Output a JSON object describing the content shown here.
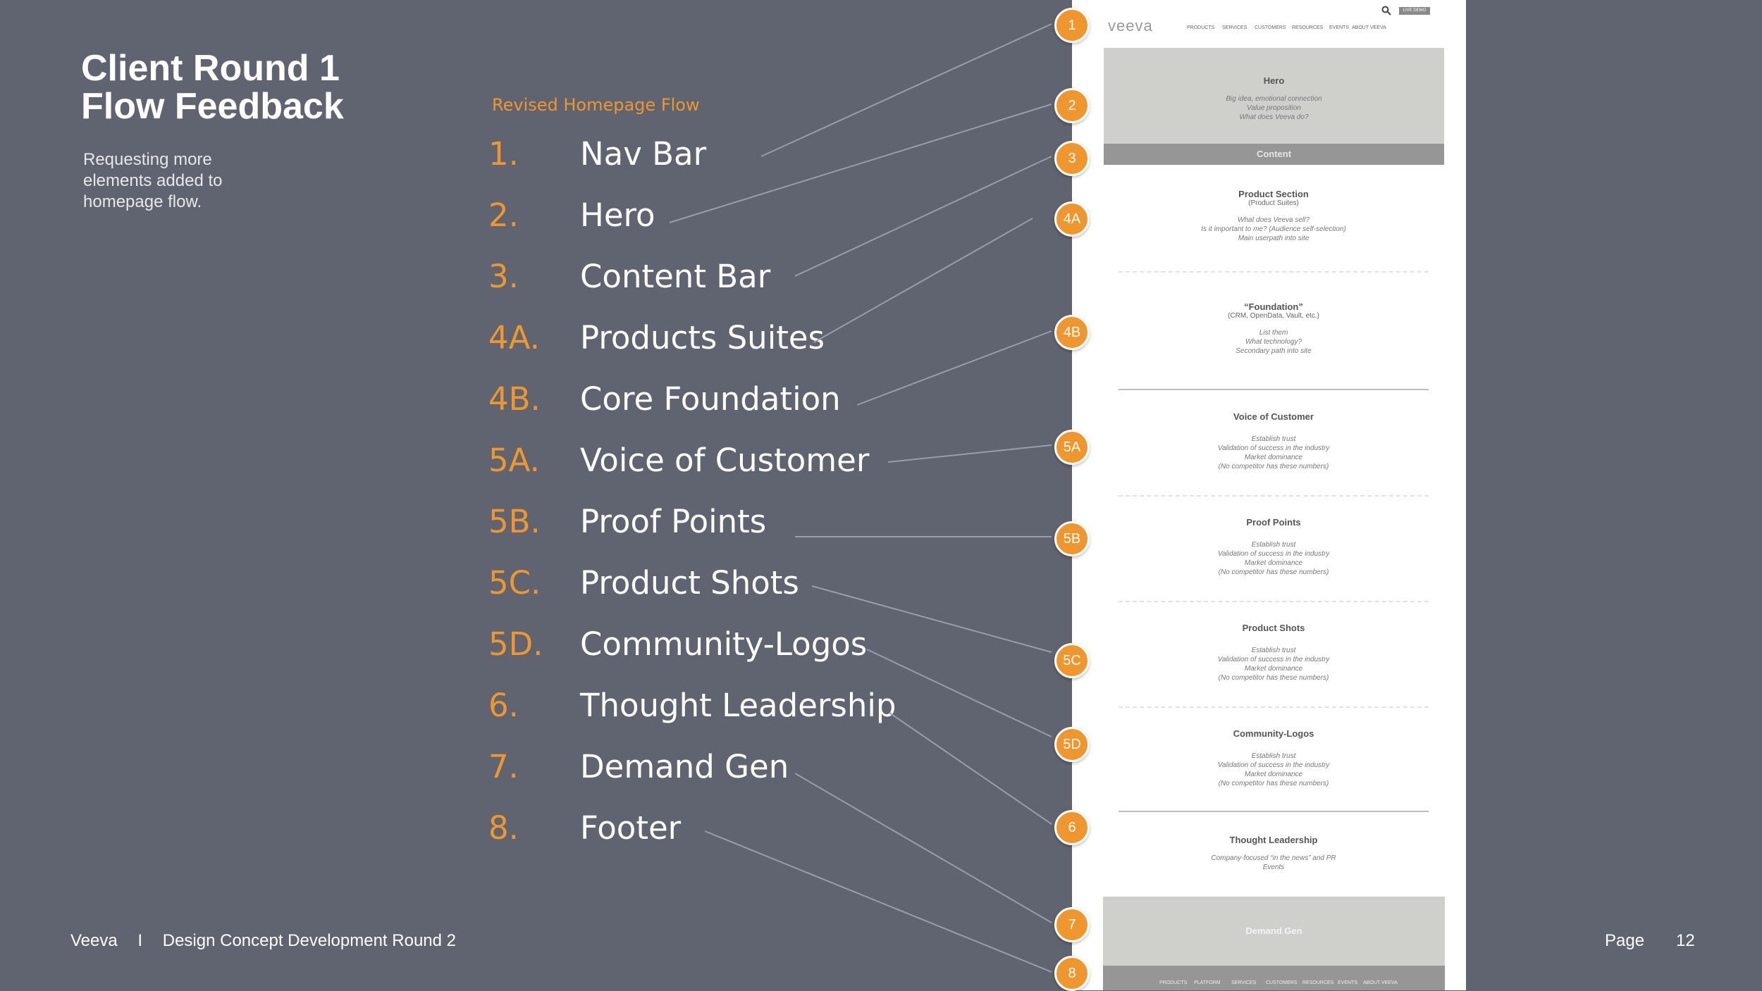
{
  "slide": {
    "title_line1": "Client Round 1",
    "title_line2": "Flow Feedback",
    "subtitle": "Requesting more elements added to homepage flow.",
    "flow_heading": "Revised Homepage Flow",
    "items": [
      {
        "num": "1.",
        "label": "Nav Bar"
      },
      {
        "num": "2.",
        "label": "Hero"
      },
      {
        "num": "3.",
        "label": "Content Bar"
      },
      {
        "num": "4A.",
        "label": "Products Suites"
      },
      {
        "num": "4B.",
        "label": "Core Foundation"
      },
      {
        "num": "5A.",
        "label": "Voice of Customer"
      },
      {
        "num": "5B.",
        "label": "Proof Points"
      },
      {
        "num": "5C.",
        "label": "Product Shots"
      },
      {
        "num": "5D.",
        "label": "Community-Logos"
      },
      {
        "num": "6.",
        "label": "Thought Leadership"
      },
      {
        "num": "7.",
        "label": "Demand Gen"
      },
      {
        "num": "8.",
        "label": "Footer"
      }
    ],
    "badges": [
      "1",
      "2",
      "3",
      "4A",
      "4B",
      "5A",
      "5B",
      "5C",
      "5D",
      "6",
      "7",
      "8"
    ]
  },
  "wireframe": {
    "logo": "veeva",
    "live_demo": "LIVE DEMO",
    "nav": [
      "PRODUCTS",
      "SERVICES",
      "CUSTOMERS",
      "RESOURCES",
      "EVENTS",
      "ABOUT VEEVA"
    ],
    "hero": {
      "title": "Hero",
      "line1": "Big idea, emotional connection",
      "line2": "Value proposition",
      "line3": "What does Veeva do?"
    },
    "content_bar": "Content",
    "product_section": {
      "title": "Product Section",
      "sub": "(Product Suites)",
      "line1": "What does Veeva sell?",
      "line2": "Is it important to me? (Audience self-selection)",
      "line3": "Main userpath into site"
    },
    "foundation": {
      "title": "“Foundation”",
      "sub": "(CRM, OpenData, Vault, etc.)",
      "line1": "List them",
      "line2": "What technology?",
      "line3": "Secondary path into site"
    },
    "voice": {
      "title": "Voice of Customer",
      "line1": "Establish trust",
      "line2": "Validation of success in the industry",
      "line3": "Market dominance",
      "line4": "(No competitor has these numbers)"
    },
    "proof": {
      "title": "Proof Points",
      "line1": "Establish trust",
      "line2": "Validation of success in the industry",
      "line3": "Market dominance",
      "line4": "(No competitor has these numbers)"
    },
    "shots": {
      "title": "Product Shots",
      "line1": "Establish trust",
      "line2": "Validation of success in the industry",
      "line3": "Market dominance",
      "line4": "(No competitor has these numbers)"
    },
    "community": {
      "title": "Community-Logos",
      "line1": "Establish trust",
      "line2": "Validation of success in the industry",
      "line3": "Market dominance",
      "line4": "(No competitor has these numbers)"
    },
    "thought": {
      "title": "Thought Leadership",
      "line1": "Company-focused “in the news” and PR",
      "line2": "Events"
    },
    "demand_gen": "Demand Gen",
    "footer_nav": [
      "PRODUCTS",
      "PLATFORM",
      "SERVICES",
      "CUSTOMERS",
      "RESOURCES",
      "EVENTS",
      "ABOUT VEEVA"
    ]
  },
  "footer": {
    "brand": "Veeva",
    "separator": "I",
    "deck": "Design Concept Development Round 2",
    "page_label": "Page",
    "page_number": "12"
  },
  "colors": {
    "background": "#5f6470",
    "accent": "#f0962f",
    "text": "#ffffff"
  }
}
